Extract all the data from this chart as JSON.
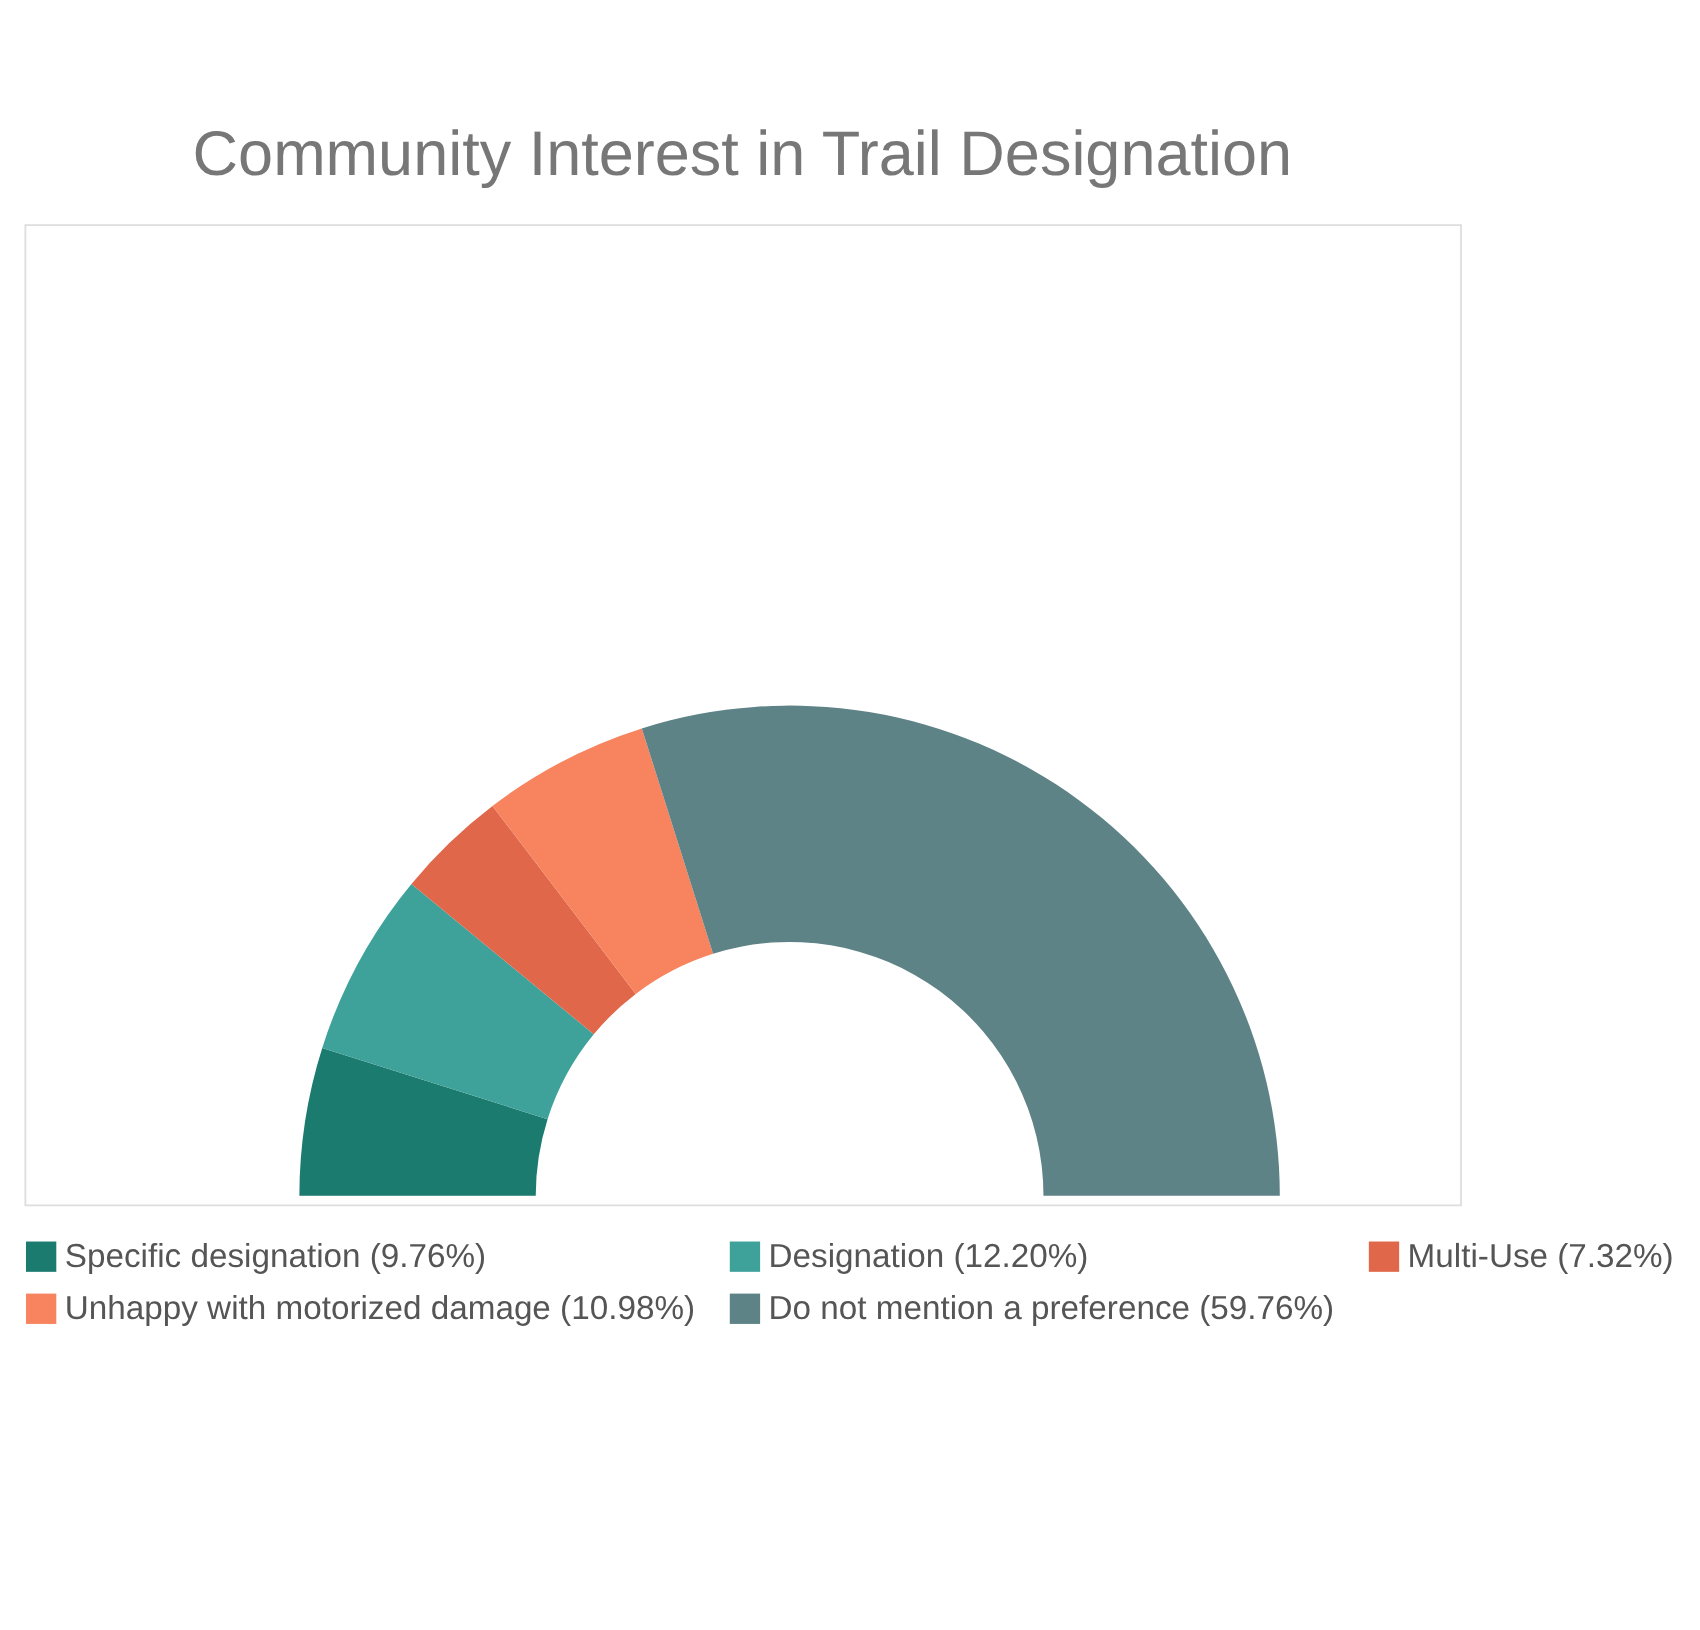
{
  "chart_data": {
    "type": "donut",
    "title": "Community Interest in Trail Designation",
    "categories": [
      "Specific designation (9.76%)",
      "Designation (12.20%)",
      "Multi-Use (7.32%)",
      "Unhappy with motorized damage (10.98%)",
      "Do not mention a preference (59.76%)"
    ],
    "values": [
      9.76,
      12.2,
      7.32,
      10.98,
      59.76
    ],
    "colors": [
      "#1b7b6f",
      "#3fa29a",
      "#e0674a",
      "#f7845f",
      "#5e8386"
    ],
    "legend": "bottom"
  }
}
